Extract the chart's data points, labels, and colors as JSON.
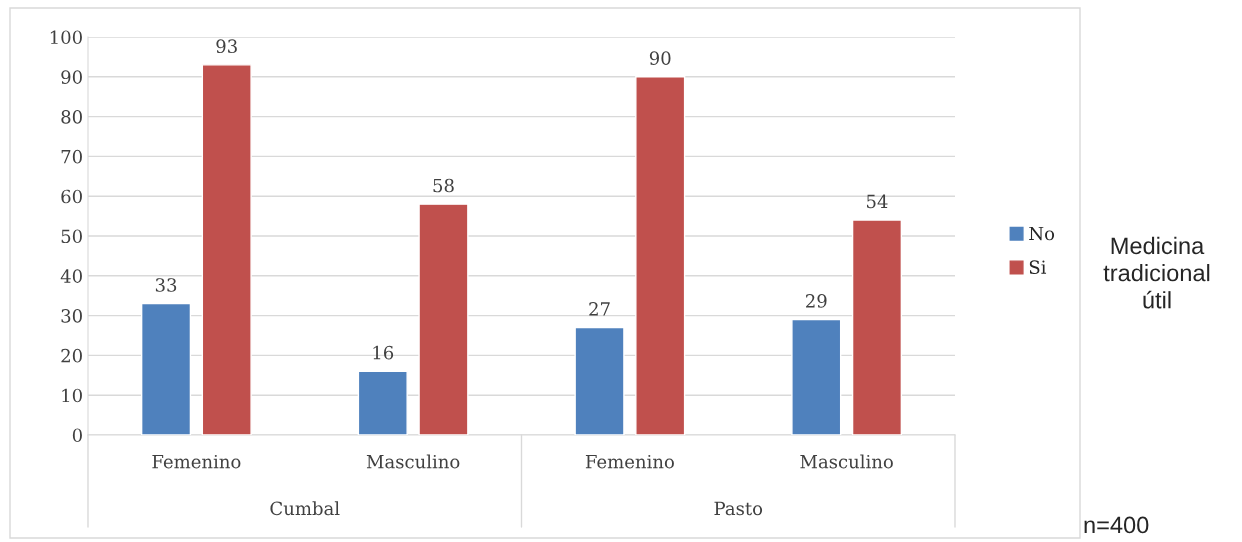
{
  "chart_data": {
    "type": "bar",
    "categories": [
      "Femenino",
      "Masculino",
      "Femenino",
      "Masculino"
    ],
    "series": [
      {
        "name": "No",
        "color": "#4f81bd",
        "values": [
          33,
          16,
          27,
          29
        ]
      },
      {
        "name": "Si",
        "color": "#c0504d",
        "values": [
          93,
          58,
          90,
          54
        ]
      }
    ],
    "ylim": [
      0,
      100
    ],
    "yticks": [
      0,
      10,
      20,
      30,
      40,
      50,
      60,
      70,
      80,
      90,
      100
    ],
    "grid": "y",
    "legend": "right",
    "data_labels": true,
    "annotations": [
      "Cumbal",
      "Pasto",
      "Medicina\ntradicional\nútil",
      "n=400"
    ]
  }
}
